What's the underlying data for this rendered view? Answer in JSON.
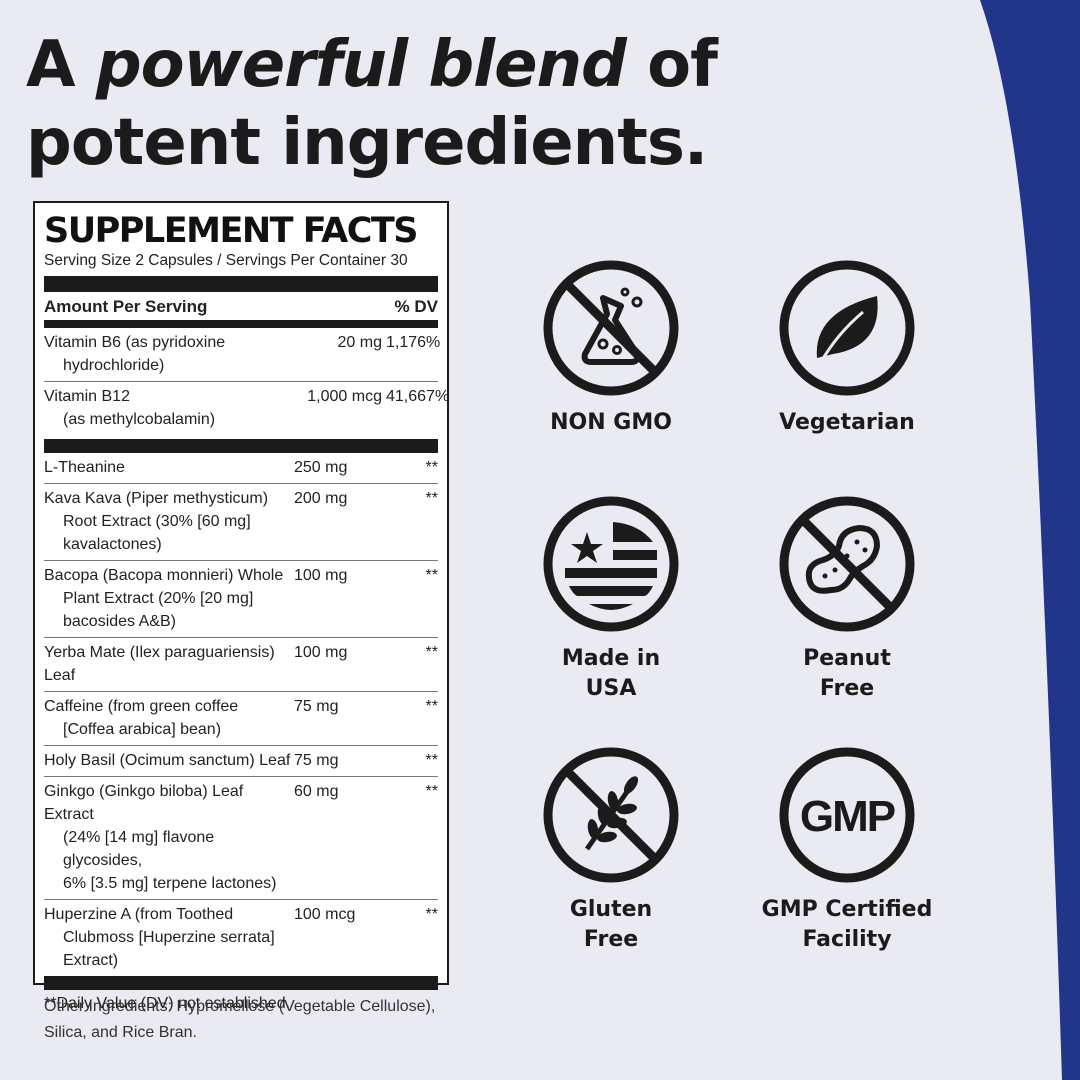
{
  "headline": {
    "part1": "A ",
    "emphasis": "powerful blend",
    "part2": " of",
    "line2": "potent ingredients."
  },
  "supplement_facts": {
    "title": "SUPPLEMENT FACTS",
    "serving": "Serving Size 2 Capsules / Servings Per Container 30",
    "amount_header": "Amount Per Serving",
    "dv_header": "% DV",
    "vitamins": [
      {
        "name_line1": "Vitamin B6 (as pyridoxine",
        "name_line2": "hydrochloride)",
        "amount": "20 mg",
        "dv": "1,176%"
      },
      {
        "name_line1": "Vitamin B12",
        "name_line2": "(as methylcobalamin)",
        "amount": "1,000 mcg",
        "dv": "41,667%"
      }
    ],
    "ingredients": [
      {
        "lines": [
          "L-Theanine"
        ],
        "amount": "250 mg",
        "dv": "**"
      },
      {
        "lines": [
          "Kava Kava (Piper methysticum)",
          "Root Extract (30% [60 mg]",
          "kavalactones)"
        ],
        "amount": "200 mg",
        "dv": "**"
      },
      {
        "lines": [
          "Bacopa (Bacopa monnieri) Whole",
          "Plant Extract (20% [20 mg]",
          "bacosides A&B)"
        ],
        "amount": "100 mg",
        "dv": "**"
      },
      {
        "lines": [
          "Yerba Mate (Ilex paraguariensis) Leaf"
        ],
        "amount": "100 mg",
        "dv": "**"
      },
      {
        "lines": [
          "Caffeine (from green coffee",
          "[Coffea arabica] bean)"
        ],
        "amount": "75 mg",
        "dv": "**"
      },
      {
        "lines": [
          "Holy Basil (Ocimum sanctum) Leaf"
        ],
        "amount": "75 mg",
        "dv": "**"
      },
      {
        "lines": [
          "Ginkgo (Ginkgo biloba) Leaf Extract",
          "(24% [14 mg] flavone glycosides,",
          "6% [3.5 mg] terpene lactones)"
        ],
        "amount": "60 mg",
        "dv": "**"
      },
      {
        "lines": [
          "Huperzine A (from Toothed",
          "Clubmoss [Huperzine serrata]",
          "Extract)"
        ],
        "amount": "100 mcg",
        "dv": "**"
      }
    ],
    "footnote": "**Daily Value (DV) not established."
  },
  "other_ingredients": "Other Ingredients: Hypromellose (Vegetable Cellulose), Silica, and Rice Bran.",
  "badges": [
    {
      "icon": "no-gmo-flask-icon",
      "label": "NON GMO"
    },
    {
      "icon": "leaf-icon",
      "label": "Vegetarian"
    },
    {
      "icon": "usa-flag-icon",
      "label": "Made in\nUSA"
    },
    {
      "icon": "no-peanut-icon",
      "label": "Peanut\nFree"
    },
    {
      "icon": "no-gluten-wheat-icon",
      "label": "Gluten\nFree"
    },
    {
      "icon": "gmp-icon",
      "label": "GMP Certified\nFacility",
      "icon_text": "GMP"
    }
  ],
  "colors": {
    "background": "#e9eaf2",
    "accent_blue": "#21358a",
    "ink": "#1b1b1b"
  }
}
